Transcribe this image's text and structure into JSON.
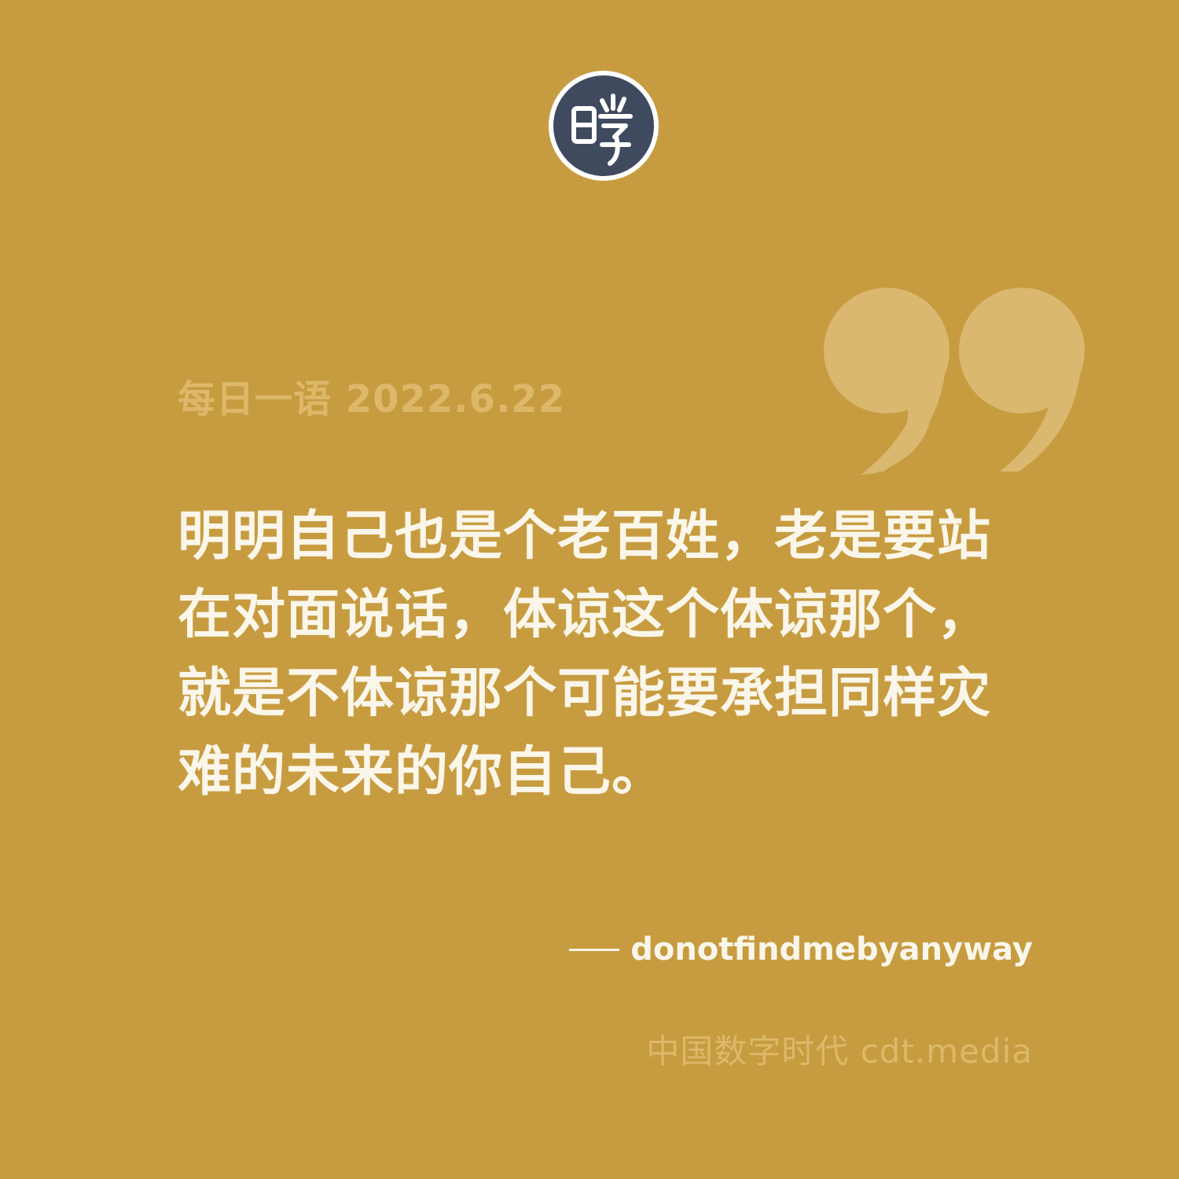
{
  "logo": {
    "icon": "cdt-seal-logo-icon",
    "glyph": "睁",
    "colors": {
      "fill": "#3f4a5f",
      "ring": "#ffffff",
      "glyph": "#ffffff"
    }
  },
  "header": {
    "date_label": "每日一语 2022.6.22"
  },
  "quote": {
    "icon": "closing-quotation-mark-icon",
    "text": "明明自己也是个老百姓，老是要站在对面说话，体谅这个体谅那个，就是不体谅那个可能要承担同样灾难的未来的你自己。"
  },
  "attribution": {
    "author": "donotfindmebyanyway"
  },
  "footer": {
    "site": "中国数字时代 cdt.media"
  },
  "colors": {
    "background": "#c79c40",
    "muted_text": "#ddb86a",
    "quote_mark": "#dbb870",
    "main_text": "#fbf6ea"
  }
}
